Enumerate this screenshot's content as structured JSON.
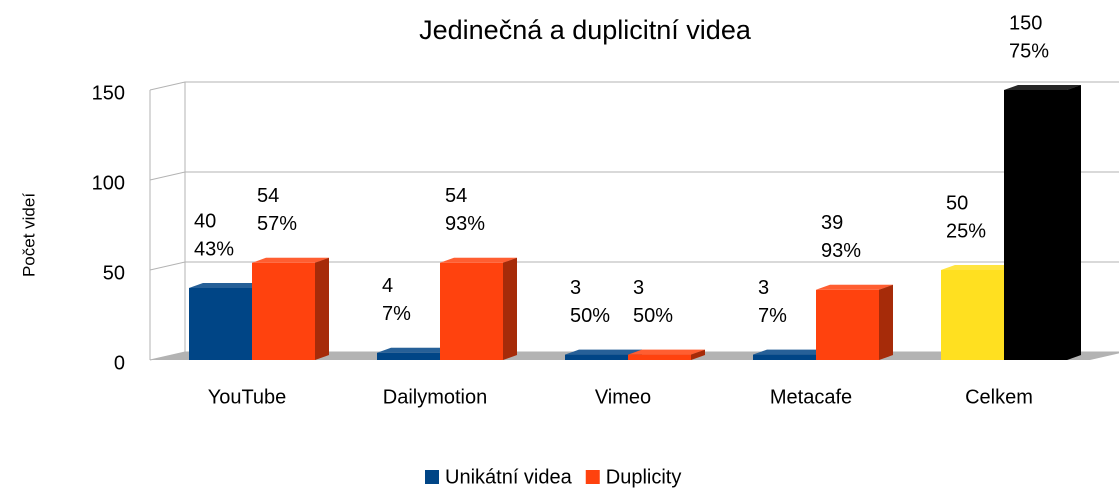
{
  "chart_data": {
    "type": "bar3d",
    "title": "Jedinečná a duplicitní videa",
    "ylabel": "Počet videí",
    "categories": [
      "YouTube",
      "Dailymotion",
      "Vimeo",
      "Metacafe",
      "Celkem"
    ],
    "series": [
      {
        "name": "Unikátní videa",
        "color": "#004586",
        "colors": [
          "#004586",
          "#004586",
          "#004586",
          "#004586",
          "#ffe020"
        ],
        "values": [
          40,
          4,
          3,
          3,
          50
        ],
        "percent_labels": [
          "43%",
          "7%",
          "50%",
          "7%",
          "25%"
        ]
      },
      {
        "name": "Duplicity",
        "color": "#ff420e",
        "colors": [
          "#ff420e",
          "#ff420e",
          "#ff420e",
          "#ff420e",
          "#000000"
        ],
        "values": [
          54,
          54,
          3,
          39,
          150
        ],
        "percent_labels": [
          "57%",
          "93%",
          "50%",
          "93%",
          "75%"
        ]
      }
    ],
    "ylim": [
      0,
      150
    ],
    "yticks": [
      0,
      50,
      100,
      150
    ],
    "grid": true,
    "legend": "bottom"
  }
}
